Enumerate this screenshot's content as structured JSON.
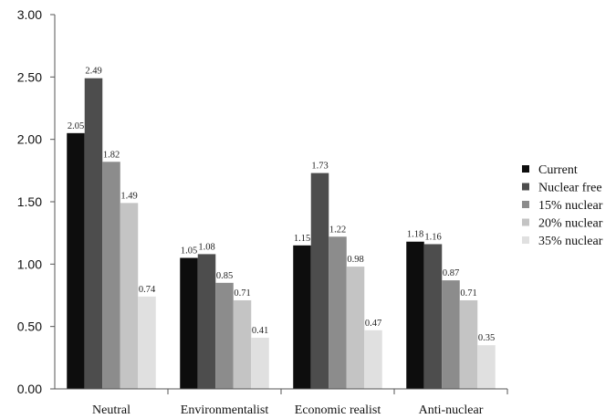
{
  "chart_data": {
    "type": "bar",
    "categories": [
      "Neutral",
      "Environmentalist",
      "Economic realist",
      "Anti-nuclear"
    ],
    "series": [
      {
        "name": "Current",
        "color": "#0d0d0d",
        "values": [
          2.05,
          1.05,
          1.15,
          1.18
        ],
        "labels": [
          "2.05",
          "1.05",
          "1.15",
          "1.18"
        ]
      },
      {
        "name": "Nuclear free",
        "color": "#4d4d4d",
        "values": [
          2.49,
          1.08,
          1.73,
          1.16
        ],
        "labels": [
          "2.49",
          "1.08",
          "1.73",
          "1.16"
        ]
      },
      {
        "name": "15% nuclear",
        "color": "#8c8c8c",
        "values": [
          1.82,
          0.85,
          1.22,
          0.87
        ],
        "labels": [
          "1.82",
          "0.85",
          "1.22",
          "0.87"
        ]
      },
      {
        "name": "20% nuclear",
        "color": "#c4c4c4",
        "values": [
          1.49,
          0.71,
          0.98,
          0.71
        ],
        "labels": [
          "1.49",
          "0.71",
          "0.98",
          "0.71"
        ]
      },
      {
        "name": "35% nuclear",
        "color": "#e0e0e0",
        "values": [
          0.74,
          0.41,
          0.47,
          0.35
        ],
        "labels": [
          "0.74",
          "0.41",
          "0.47",
          "0.35"
        ]
      }
    ],
    "y_ticks": [
      "0.00",
      "0.50",
      "1.00",
      "1.50",
      "2.00",
      "2.50",
      "3.00"
    ],
    "ylim": [
      0,
      3
    ],
    "grid": false,
    "legend_position": "right"
  }
}
